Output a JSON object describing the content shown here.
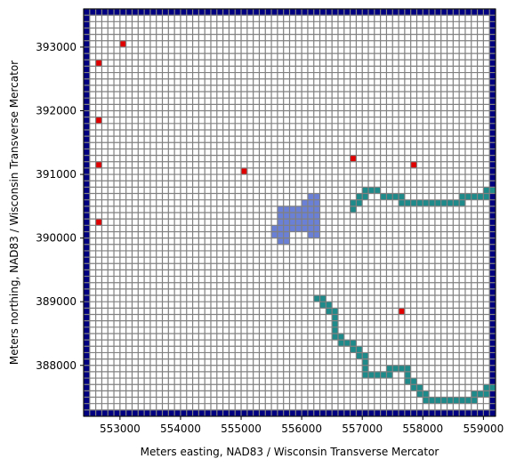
{
  "chart_data": {
    "type": "heatmap",
    "title": "",
    "xlabel": "Meters easting, NAD83 / Wisconsin Transverse Mercator",
    "ylabel": "Meters northing, NAD83 / Wisconsin Transverse Mercator",
    "xlim": [
      552400,
      559200
    ],
    "ylim": [
      387200,
      393600
    ],
    "x_ticks": [
      {
        "value": 553000,
        "label": "553000"
      },
      {
        "value": 554000,
        "label": "554000"
      },
      {
        "value": 555000,
        "label": "555000"
      },
      {
        "value": 556000,
        "label": "556000"
      },
      {
        "value": 557000,
        "label": "557000"
      },
      {
        "value": 558000,
        "label": "558000"
      },
      {
        "value": 559000,
        "label": "559000"
      }
    ],
    "y_ticks": [
      {
        "value": 388000,
        "label": "388000"
      },
      {
        "value": 389000,
        "label": "389000"
      },
      {
        "value": 390000,
        "label": "390000"
      },
      {
        "value": 391000,
        "label": "391000"
      },
      {
        "value": 392000,
        "label": "392000"
      },
      {
        "value": 393000,
        "label": "393000"
      }
    ],
    "grid": {
      "x0": 552400,
      "y0": 387200,
      "cell_size": 100,
      "ncol": 68,
      "nrow": 64,
      "line_color": "#808080",
      "background": "#ffffff"
    },
    "boundary": {
      "color": "#000080",
      "description": "constant-head perimeter cells"
    },
    "lake": {
      "color": "#6a7fd6",
      "cells": [
        [
          556100,
          390600
        ],
        [
          556200,
          390600
        ],
        [
          556000,
          390500
        ],
        [
          556100,
          390500
        ],
        [
          556200,
          390500
        ],
        [
          555600,
          390400
        ],
        [
          555700,
          390400
        ],
        [
          555800,
          390400
        ],
        [
          555900,
          390400
        ],
        [
          556000,
          390400
        ],
        [
          556100,
          390400
        ],
        [
          556200,
          390400
        ],
        [
          555600,
          390300
        ],
        [
          555700,
          390300
        ],
        [
          555800,
          390300
        ],
        [
          555900,
          390300
        ],
        [
          556000,
          390300
        ],
        [
          556100,
          390300
        ],
        [
          556200,
          390300
        ],
        [
          555600,
          390200
        ],
        [
          555700,
          390200
        ],
        [
          555800,
          390200
        ],
        [
          555900,
          390200
        ],
        [
          556000,
          390200
        ],
        [
          556100,
          390200
        ],
        [
          556200,
          390200
        ],
        [
          555500,
          390100
        ],
        [
          555600,
          390100
        ],
        [
          555700,
          390100
        ],
        [
          555800,
          390100
        ],
        [
          555900,
          390100
        ],
        [
          556000,
          390100
        ],
        [
          556100,
          390100
        ],
        [
          556200,
          390100
        ],
        [
          555500,
          390000
        ],
        [
          555600,
          390000
        ],
        [
          555700,
          390000
        ],
        [
          556100,
          390000
        ],
        [
          556200,
          390000
        ],
        [
          555600,
          389900
        ],
        [
          555700,
          389900
        ]
      ]
    },
    "streams": {
      "color": "#1f8a8a",
      "cells": [
        [
          559000,
          390700
        ],
        [
          559100,
          390700
        ],
        [
          557000,
          390700
        ],
        [
          557100,
          390700
        ],
        [
          557200,
          390700
        ],
        [
          556900,
          390600
        ],
        [
          557000,
          390600
        ],
        [
          557300,
          390600
        ],
        [
          557400,
          390600
        ],
        [
          557500,
          390600
        ],
        [
          557600,
          390600
        ],
        [
          558600,
          390600
        ],
        [
          558700,
          390600
        ],
        [
          558800,
          390600
        ],
        [
          558900,
          390600
        ],
        [
          559000,
          390600
        ],
        [
          556800,
          390500
        ],
        [
          556900,
          390500
        ],
        [
          557600,
          390500
        ],
        [
          557700,
          390500
        ],
        [
          557800,
          390500
        ],
        [
          557900,
          390500
        ],
        [
          558000,
          390500
        ],
        [
          558100,
          390500
        ],
        [
          558200,
          390500
        ],
        [
          558300,
          390500
        ],
        [
          558400,
          390500
        ],
        [
          558500,
          390500
        ],
        [
          558600,
          390500
        ],
        [
          556800,
          390400
        ],
        [
          556200,
          389000
        ],
        [
          556300,
          389000
        ],
        [
          556300,
          388900
        ],
        [
          556400,
          388900
        ],
        [
          556400,
          388800
        ],
        [
          556500,
          388800
        ],
        [
          556500,
          388700
        ],
        [
          556500,
          388600
        ],
        [
          556500,
          388500
        ],
        [
          556500,
          388400
        ],
        [
          556600,
          388400
        ],
        [
          556600,
          388300
        ],
        [
          556700,
          388300
        ],
        [
          556800,
          388300
        ],
        [
          556800,
          388200
        ],
        [
          556900,
          388200
        ],
        [
          556900,
          388100
        ],
        [
          557000,
          388100
        ],
        [
          557000,
          388000
        ],
        [
          557000,
          387900
        ],
        [
          557400,
          387900
        ],
        [
          557500,
          387900
        ],
        [
          557600,
          387900
        ],
        [
          557700,
          387900
        ],
        [
          557000,
          387800
        ],
        [
          557100,
          387800
        ],
        [
          557200,
          387800
        ],
        [
          557300,
          387800
        ],
        [
          557400,
          387800
        ],
        [
          557700,
          387800
        ],
        [
          557700,
          387700
        ],
        [
          557800,
          387700
        ],
        [
          557800,
          387600
        ],
        [
          557900,
          387600
        ],
        [
          559000,
          387600
        ],
        [
          559100,
          387600
        ],
        [
          557900,
          387500
        ],
        [
          558000,
          387500
        ],
        [
          558800,
          387500
        ],
        [
          558900,
          387500
        ],
        [
          559000,
          387500
        ],
        [
          558000,
          387400
        ],
        [
          558100,
          387400
        ],
        [
          558200,
          387400
        ],
        [
          558300,
          387400
        ],
        [
          558400,
          387400
        ],
        [
          558500,
          387400
        ],
        [
          558600,
          387400
        ],
        [
          558700,
          387400
        ],
        [
          558800,
          387400
        ]
      ]
    },
    "wells": {
      "color": "#e00000",
      "cells": [
        [
          553000,
          393000
        ],
        [
          552600,
          392700
        ],
        [
          552600,
          391800
        ],
        [
          552600,
          391100
        ],
        [
          552600,
          390200
        ],
        [
          555000,
          391000
        ],
        [
          556800,
          391200
        ],
        [
          557800,
          391100
        ],
        [
          557600,
          388800
        ]
      ]
    }
  }
}
